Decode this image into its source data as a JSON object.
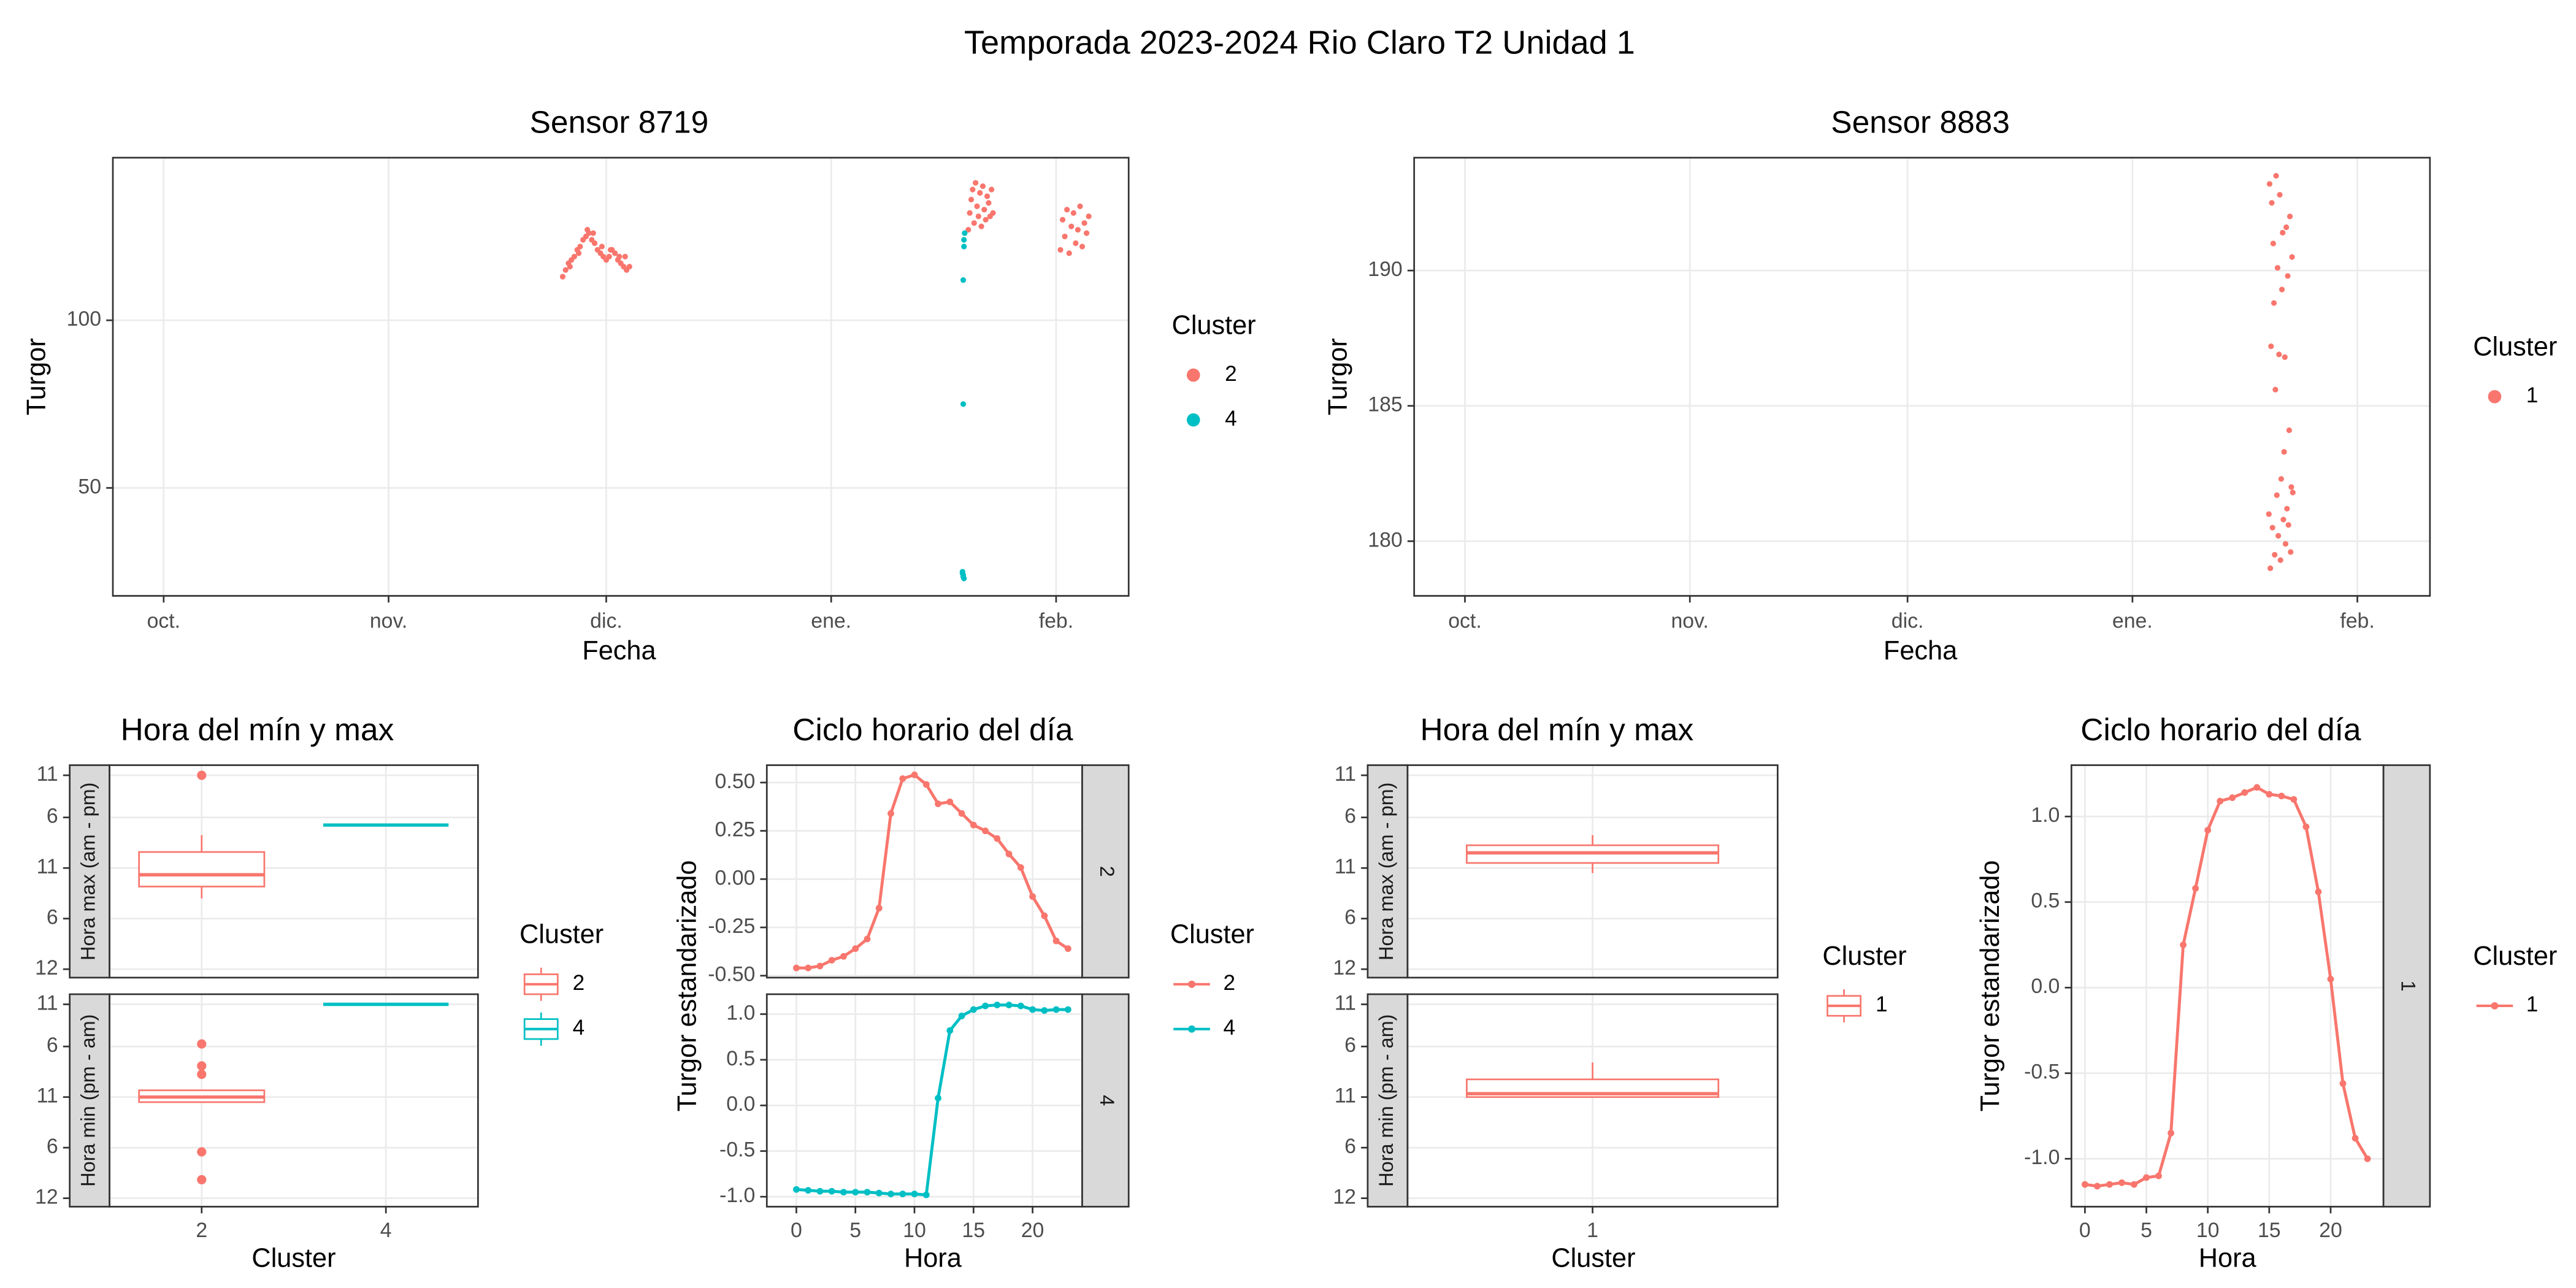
{
  "title": "Temporada 2023-2024 Rio Claro T2 Unidad 1",
  "chart_data": [
    {
      "type": "scatter",
      "title": "Sensor 8719",
      "xlabel": "Fecha",
      "ylabel": "Turgor",
      "legend_title": "Cluster",
      "xlim": [
        -7,
        133
      ],
      "xticks": [
        {
          "value": 0,
          "label": "oct."
        },
        {
          "value": 31,
          "label": "nov."
        },
        {
          "value": 61,
          "label": "dic."
        },
        {
          "value": 92,
          "label": "ene."
        },
        {
          "value": 123,
          "label": "feb."
        }
      ],
      "ylim": [
        17.8,
        148.5
      ],
      "yticks": [
        50,
        100
      ],
      "grid": true,
      "series": [
        {
          "name": "2",
          "color": "#F8766D",
          "x": [
            55.0,
            55.4,
            55.8,
            56.2,
            56.6,
            57.0,
            57.4,
            57.8,
            58.2,
            58.6,
            59.0,
            59.4,
            59.8,
            60.2,
            60.6,
            61.0,
            61.4,
            61.8,
            62.2,
            62.6,
            63.0,
            63.4,
            63.8,
            64.2,
            56.0,
            57.2,
            58.4,
            59.2,
            60.4,
            61.6,
            62.8,
            63.6,
            110.9,
            111.1,
            111.3,
            111.5,
            111.7,
            111.9,
            112.1,
            112.3,
            112.5,
            112.7,
            112.9,
            113.1,
            113.3,
            113.5,
            113.7,
            113.9,
            114.1,
            114.3,
            123.6,
            123.9,
            124.2,
            124.5,
            124.8,
            125.1,
            125.4,
            125.7,
            126.0,
            126.3,
            126.6,
            126.9,
            127.2,
            127.5
          ],
          "y": [
            113,
            115,
            117,
            118,
            119,
            121,
            122,
            124,
            125,
            126,
            124,
            123,
            121,
            120,
            119,
            118,
            119,
            121,
            120,
            118,
            117,
            116,
            115,
            116,
            116,
            120,
            127,
            126,
            122,
            121,
            119,
            119,
            127,
            132,
            136,
            139,
            129,
            141,
            134,
            131,
            138,
            128,
            140,
            133,
            130,
            137,
            135,
            131,
            139,
            132,
            121,
            130,
            125,
            133,
            120,
            128,
            132,
            123,
            127,
            134,
            122,
            129,
            126,
            131
          ]
        },
        {
          "name": "4",
          "color": "#00BFC4",
          "x": [
            110.4,
            110.3,
            110.3,
            110.2,
            110.2,
            110.1,
            110.1,
            110.2,
            110.2,
            110.3
          ],
          "y": [
            126,
            124,
            122,
            112,
            75,
            25,
            24.5,
            24,
            23.5,
            23
          ]
        }
      ]
    },
    {
      "type": "scatter",
      "title": "Sensor 8883",
      "xlabel": "Fecha",
      "ylabel": "Turgor",
      "legend_title": "Cluster",
      "xlim": [
        -7,
        133
      ],
      "xticks": [
        {
          "value": 0,
          "label": "oct."
        },
        {
          "value": 31,
          "label": "nov."
        },
        {
          "value": 61,
          "label": "dic."
        },
        {
          "value": 92,
          "label": "ene."
        },
        {
          "value": 123,
          "label": "feb."
        }
      ],
      "ylim": [
        177.98,
        194.17
      ],
      "yticks": [
        180,
        185,
        190
      ],
      "grid": true,
      "series": [
        {
          "name": "1",
          "color": "#F8766D",
          "x": [
            110.8,
            110.9,
            111.0,
            111.1,
            111.2,
            111.3,
            111.4,
            111.5,
            111.6,
            111.7,
            111.8,
            111.9,
            112.0,
            112.1,
            112.2,
            112.3,
            112.4,
            112.5,
            112.6,
            112.7,
            112.8,
            112.9,
            113.0,
            113.1,
            113.2,
            113.3,
            113.4,
            113.5,
            113.6,
            113.7,
            113.8,
            113.9,
            114.0,
            114.1
          ],
          "y": [
            181.0,
            193.2,
            179.0,
            187.2,
            192.5,
            180.5,
            191.0,
            188.8,
            179.5,
            185.6,
            193.5,
            181.7,
            190.1,
            180.2,
            186.9,
            192.8,
            179.3,
            182.3,
            189.3,
            191.4,
            180.8,
            183.3,
            186.8,
            179.9,
            191.6,
            181.2,
            189.8,
            180.6,
            184.1,
            192.0,
            179.6,
            182.0,
            190.5,
            181.8
          ]
        }
      ]
    },
    {
      "type": "box",
      "title": "Hora del mín y max",
      "xlabel": "Cluster",
      "legend_title": "Cluster",
      "categories": [
        "2",
        "4"
      ],
      "colors": [
        "#F8766D",
        "#00BFC4"
      ],
      "ylim": [
        -1,
        24.2
      ],
      "yticks": [
        {
          "value": 0,
          "label": "12"
        },
        6,
        {
          "value": 12,
          "label": "11"
        },
        {
          "value": 18,
          "label": "6"
        },
        {
          "value": 23,
          "label": "11"
        }
      ],
      "facets": [
        {
          "label": "Hora max (am - pm)",
          "boxes": [
            {
              "min": 8.4,
              "q1": 9.8,
              "median": 11.2,
              "q3": 13.9,
              "max": 15.9,
              "outliers": [
                23
              ]
            },
            {
              "min": 17.1,
              "q1": 17.1,
              "median": 17.1,
              "q3": 17.1,
              "max": 17.1,
              "outliers": []
            }
          ]
        },
        {
          "label": "Hora min (pm - am)",
          "boxes": [
            {
              "min": 11.4,
              "q1": 11.4,
              "median": 12.0,
              "q3": 12.8,
              "max": 12.8,
              "outliers": [
                18.3,
                15.7,
                14.7,
                5.5,
                2.2
              ]
            },
            {
              "min": 23,
              "q1": 23,
              "median": 23,
              "q3": 23,
              "max": 23,
              "outliers": []
            }
          ]
        }
      ]
    },
    {
      "type": "line",
      "title": "Ciclo horario del día",
      "xlabel": "Hora",
      "ylabel": "Turgor estandarizado",
      "legend_title": "Cluster",
      "x": [
        0,
        1,
        2,
        3,
        4,
        5,
        6,
        7,
        8,
        9,
        10,
        11,
        12,
        13,
        14,
        15,
        16,
        17,
        18,
        19,
        20,
        21,
        22,
        23
      ],
      "xlim": [
        -2.5,
        24.2
      ],
      "xticks": [
        0,
        5,
        10,
        15,
        20
      ],
      "series": [
        {
          "name": "2",
          "color": "#F8766D",
          "ylim": [
            -0.51,
            0.59
          ],
          "yticks": [
            {
              "value": -0.5,
              "label": "-0.50"
            },
            -0.25,
            {
              "value": 0,
              "label": "0.00"
            },
            0.25,
            {
              "value": 0.5,
              "label": "0.50"
            }
          ],
          "values": [
            -0.46,
            -0.46,
            -0.45,
            -0.42,
            -0.4,
            -0.36,
            -0.31,
            -0.15,
            0.34,
            0.52,
            0.54,
            0.49,
            0.39,
            0.4,
            0.34,
            0.28,
            0.25,
            0.21,
            0.13,
            0.06,
            -0.09,
            -0.19,
            -0.32,
            -0.36
          ]
        },
        {
          "name": "4",
          "color": "#00BFC4",
          "ylim": [
            -1.109,
            1.218
          ],
          "yticks": [
            {
              "value": -1,
              "label": "-1.0"
            },
            -0.5,
            {
              "value": 0,
              "label": "0.0"
            },
            0.5,
            {
              "value": 1,
              "label": "1.0"
            }
          ],
          "values": [
            -0.92,
            -0.93,
            -0.94,
            -0.94,
            -0.95,
            -0.95,
            -0.95,
            -0.96,
            -0.97,
            -0.97,
            -0.97,
            -0.98,
            0.08,
            0.82,
            0.98,
            1.05,
            1.09,
            1.1,
            1.1,
            1.09,
            1.05,
            1.04,
            1.05,
            1.05
          ]
        }
      ]
    },
    {
      "type": "box",
      "title": "Hora del mín y max",
      "xlabel": "Cluster",
      "legend_title": "Cluster",
      "categories": [
        "1"
      ],
      "colors": [
        "#F8766D"
      ],
      "ylim": [
        -1,
        24.2
      ],
      "yticks": [
        {
          "value": 0,
          "label": "12"
        },
        6,
        {
          "value": 12,
          "label": "11"
        },
        {
          "value": 18,
          "label": "6"
        },
        {
          "value": 23,
          "label": "11"
        }
      ],
      "facets": [
        {
          "label": "Hora max (am - pm)",
          "boxes": [
            {
              "min": 11.4,
              "q1": 12.6,
              "median": 13.8,
              "q3": 14.7,
              "max": 15.9,
              "outliers": []
            }
          ]
        },
        {
          "label": "Hora min (pm - am)",
          "boxes": [
            {
              "min": 12.0,
              "q1": 12.0,
              "median": 12.4,
              "q3": 14.1,
              "max": 16.1,
              "outliers": []
            }
          ]
        }
      ]
    },
    {
      "type": "line",
      "title": "Ciclo horario del día",
      "xlabel": "Hora",
      "ylabel": "Turgor estandarizado",
      "legend_title": "Cluster",
      "x": [
        0,
        1,
        2,
        3,
        4,
        5,
        6,
        7,
        8,
        9,
        10,
        11,
        12,
        13,
        14,
        15,
        16,
        17,
        18,
        19,
        20,
        21,
        22,
        23
      ],
      "xlim": [
        -1.1,
        24.3
      ],
      "xticks": [
        0,
        5,
        10,
        15,
        20
      ],
      "series": [
        {
          "name": "1",
          "color": "#F8766D",
          "ylim": [
            -1.28,
            1.3
          ],
          "yticks": [
            {
              "value": -1,
              "label": "-1.0"
            },
            -0.5,
            {
              "value": 0,
              "label": "0.0"
            },
            0.5,
            {
              "value": 1,
              "label": "1.0"
            }
          ],
          "values": [
            -1.15,
            -1.16,
            -1.15,
            -1.14,
            -1.15,
            -1.11,
            -1.1,
            -0.85,
            0.25,
            0.58,
            0.92,
            1.09,
            1.11,
            1.14,
            1.17,
            1.13,
            1.12,
            1.1,
            0.94,
            0.56,
            0.05,
            -0.56,
            -0.88,
            -1.0
          ]
        }
      ]
    }
  ]
}
